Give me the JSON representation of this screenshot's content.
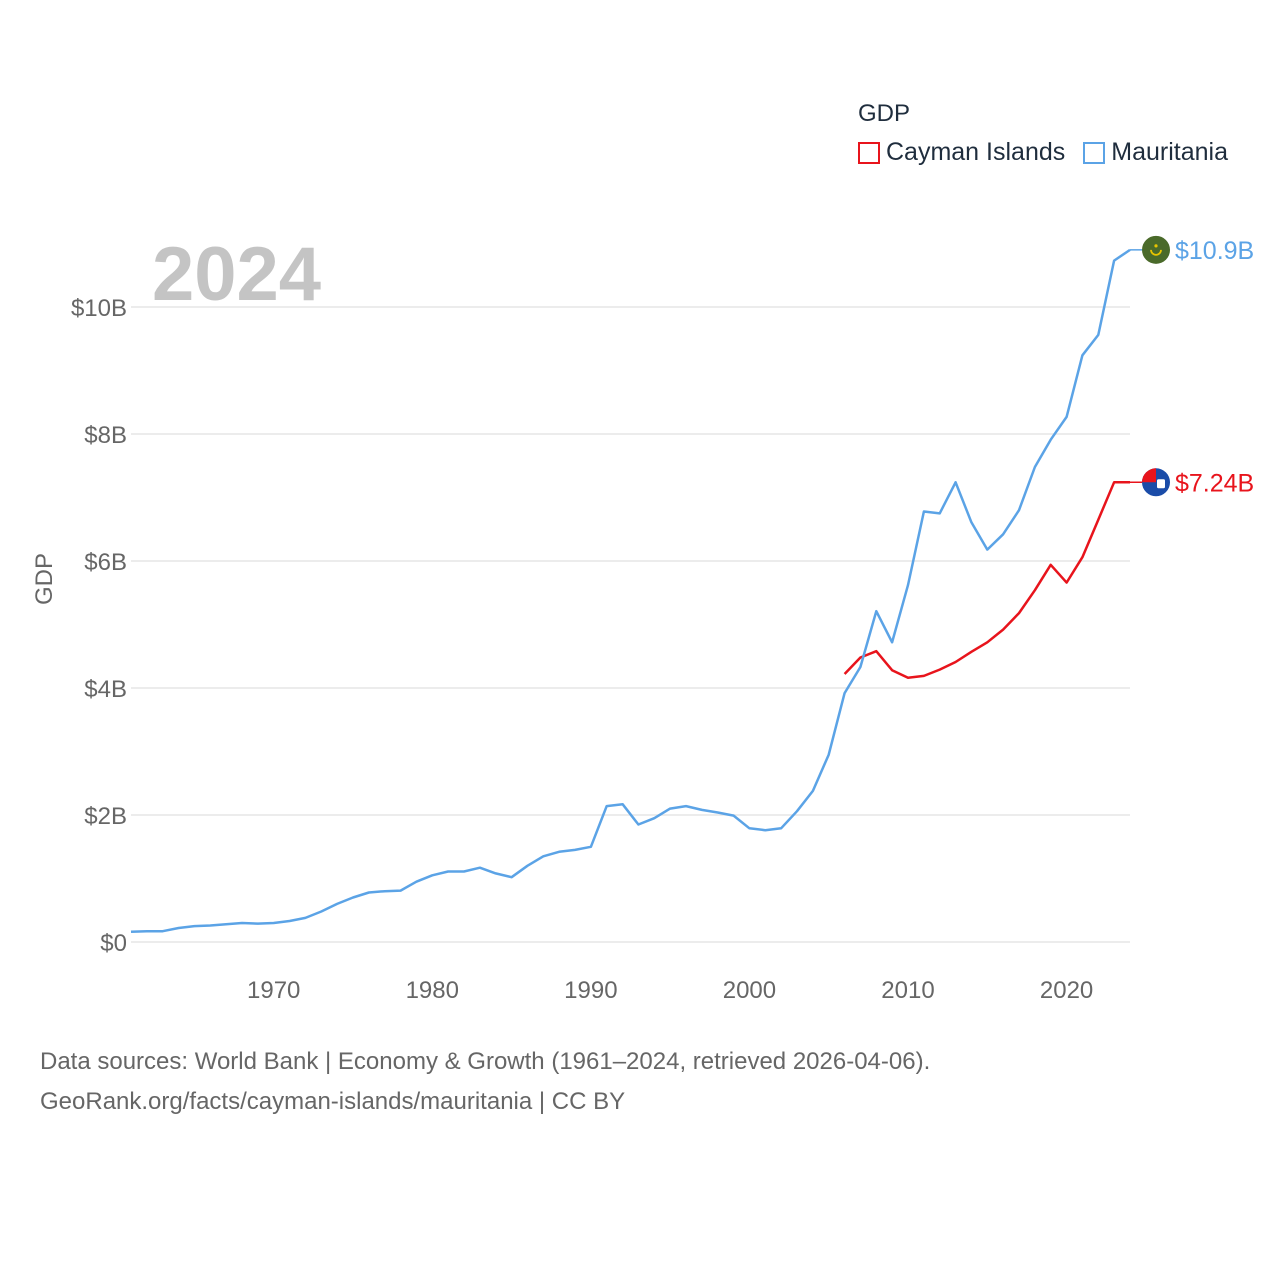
{
  "chart_data": {
    "type": "line",
    "watermark": "2024",
    "ylabel": "GDP",
    "ylim": [
      0,
      11.5
    ],
    "xlim": [
      1961,
      2024
    ],
    "yticks": [
      {
        "value": 0,
        "label": "$0"
      },
      {
        "value": 2,
        "label": "$2B"
      },
      {
        "value": 4,
        "label": "$4B"
      },
      {
        "value": 6,
        "label": "$6B"
      },
      {
        "value": 8,
        "label": "$8B"
      },
      {
        "value": 10,
        "label": "$10B"
      }
    ],
    "xticks": [
      {
        "value": 1970,
        "label": "1970"
      },
      {
        "value": 1980,
        "label": "1980"
      },
      {
        "value": 1990,
        "label": "1990"
      },
      {
        "value": 2000,
        "label": "2000"
      },
      {
        "value": 2010,
        "label": "2010"
      },
      {
        "value": 2020,
        "label": "2020"
      }
    ],
    "series": [
      {
        "name": "Cayman Islands",
        "color": "#e8141c",
        "end_label": "$7.24B",
        "x": [
          2006,
          2007,
          2008,
          2009,
          2010,
          2011,
          2012,
          2013,
          2014,
          2015,
          2016,
          2017,
          2018,
          2019,
          2020,
          2021,
          2022,
          2023,
          2024
        ],
        "values": [
          4.22,
          4.48,
          4.58,
          4.28,
          4.16,
          4.19,
          4.29,
          4.41,
          4.57,
          4.72,
          4.92,
          5.18,
          5.54,
          5.94,
          5.66,
          6.06,
          6.65,
          7.24,
          7.24
        ]
      },
      {
        "name": "Mauritania",
        "color": "#5ba3e6",
        "end_label": "$10.9B",
        "x": [
          1961,
          1962,
          1963,
          1964,
          1965,
          1966,
          1967,
          1968,
          1969,
          1970,
          1971,
          1972,
          1973,
          1974,
          1975,
          1976,
          1977,
          1978,
          1979,
          1980,
          1981,
          1982,
          1983,
          1984,
          1985,
          1986,
          1987,
          1988,
          1989,
          1990,
          1991,
          1992,
          1993,
          1994,
          1995,
          1996,
          1997,
          1998,
          1999,
          2000,
          2001,
          2002,
          2003,
          2004,
          2005,
          2006,
          2007,
          2008,
          2009,
          2010,
          2011,
          2012,
          2013,
          2014,
          2015,
          2016,
          2017,
          2018,
          2019,
          2020,
          2021,
          2022,
          2023,
          2024
        ],
        "values": [
          0.16,
          0.17,
          0.17,
          0.22,
          0.25,
          0.26,
          0.28,
          0.3,
          0.29,
          0.3,
          0.33,
          0.38,
          0.48,
          0.6,
          0.7,
          0.78,
          0.8,
          0.81,
          0.95,
          1.05,
          1.11,
          1.11,
          1.17,
          1.08,
          1.02,
          1.2,
          1.35,
          1.42,
          1.45,
          1.5,
          2.14,
          2.17,
          1.85,
          1.95,
          2.1,
          2.14,
          2.08,
          2.04,
          1.99,
          1.79,
          1.76,
          1.79,
          2.06,
          2.38,
          2.95,
          3.92,
          4.33,
          5.21,
          4.72,
          5.62,
          6.78,
          6.75,
          7.24,
          6.61,
          6.18,
          6.42,
          6.8,
          7.48,
          7.91,
          8.27,
          9.24,
          9.56,
          10.73,
          10.9
        ]
      }
    ]
  },
  "legend": {
    "title": "GDP",
    "items": [
      {
        "name": "Cayman Islands",
        "color": "#e8141c"
      },
      {
        "name": "Mauritania",
        "color": "#5ba3e6"
      }
    ]
  },
  "footer": {
    "line1": "Data sources: World Bank | Economy & Growth (1961–2024, retrieved 2026-04-06).",
    "line2": "GeoRank.org/facts/cayman-islands/mauritania | CC BY"
  },
  "icons": {
    "mauritania": "mauritania-flag-icon",
    "cayman": "cayman-islands-flag-icon"
  }
}
